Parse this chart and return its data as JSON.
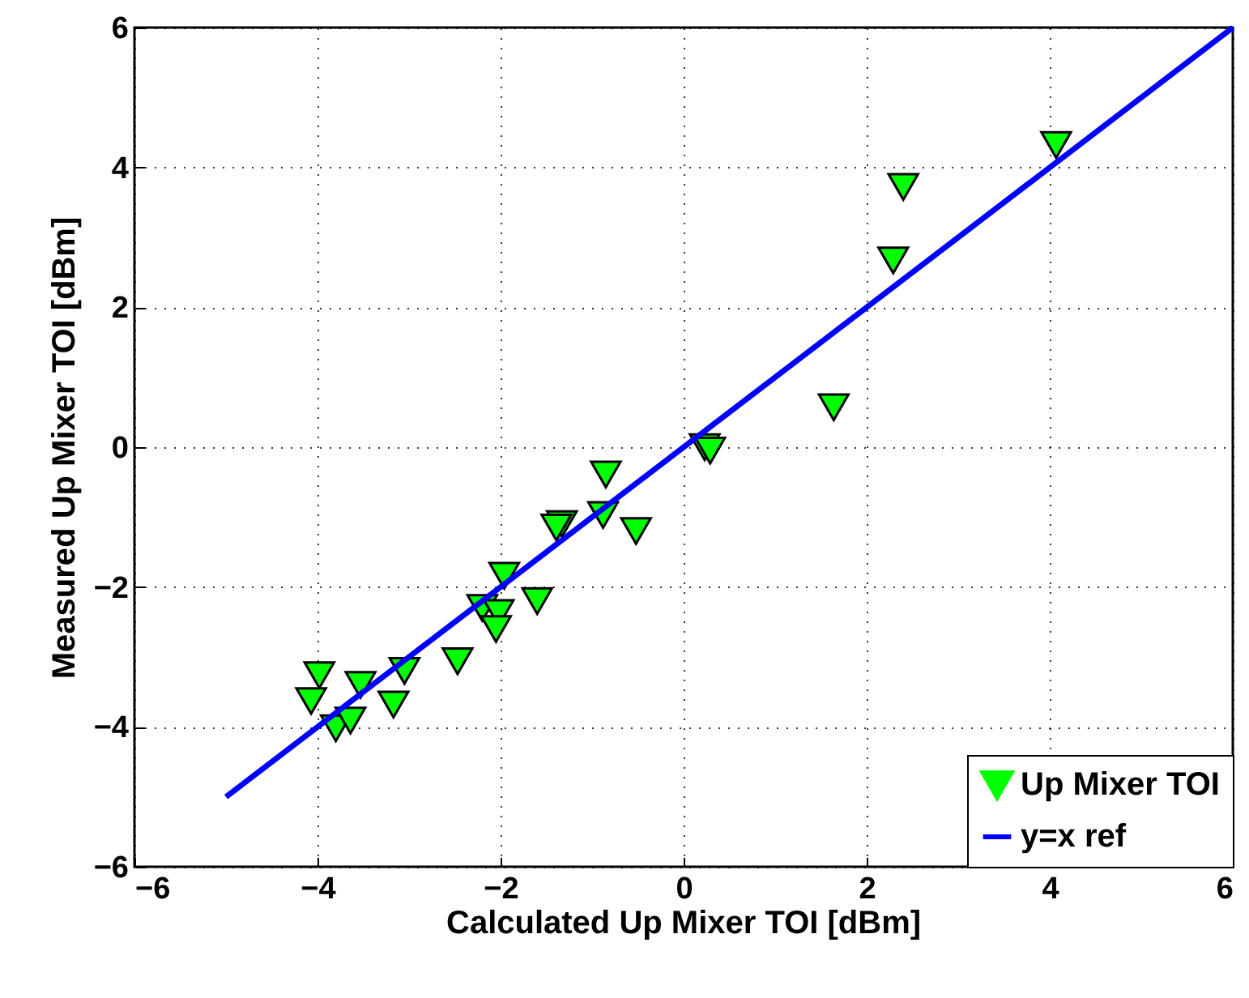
{
  "chart_data": {
    "type": "scatter",
    "xlabel": "Calculated Up Mixer TOI [dBm]",
    "ylabel": "Measured Up Mixer TOI [dBm]",
    "xlim": [
      -6,
      6
    ],
    "ylim": [
      -6,
      6
    ],
    "xticks": [
      -6,
      -4,
      -2,
      0,
      2,
      4,
      6
    ],
    "yticks": [
      -6,
      -4,
      -2,
      0,
      2,
      4,
      6
    ],
    "grid": true,
    "legend": "bottom right",
    "series": [
      {
        "name": "Up Mixer TOI",
        "color": "#00ff00",
        "marker": "triangle",
        "x": [
          -0.85,
          -0.52,
          -0.88,
          -1.33,
          -1.39,
          -1.96,
          -1.6,
          -2.2,
          -2.02,
          -2.05,
          -2.47,
          -3.05,
          -3.17,
          -3.53,
          -3.98,
          -4.07,
          -3.8,
          -3.64,
          2.4,
          2.29,
          4.07,
          1.64,
          0.23,
          0.29
        ],
        "values": [
          -0.39,
          -1.2,
          -0.97,
          -1.1,
          -1.15,
          -1.84,
          -2.2,
          -2.3,
          -2.37,
          -2.6,
          -3.06,
          -3.2,
          -3.68,
          -3.4,
          -3.26,
          -3.63,
          -4.02,
          -3.91,
          3.72,
          2.67,
          4.32,
          0.57,
          0.0,
          -0.05
        ]
      },
      {
        "name": "y=x ref",
        "color": "#0000ff",
        "type": "line",
        "line_style": "solid",
        "x": [
          -5,
          6
        ],
        "values": [
          -5,
          6
        ]
      }
    ]
  }
}
